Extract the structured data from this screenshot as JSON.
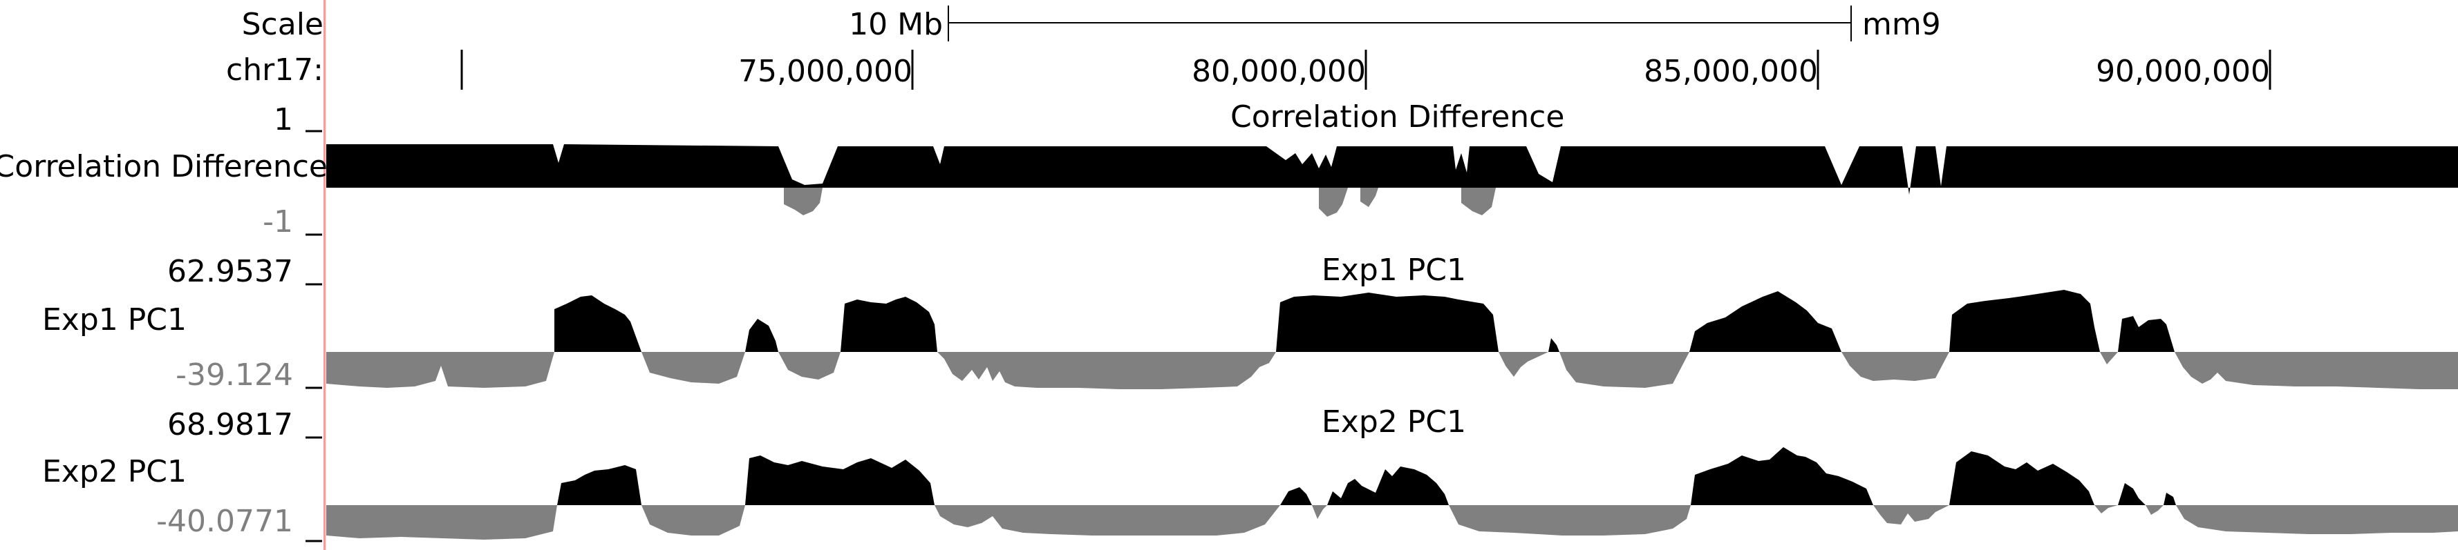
{
  "browser": {
    "scale_label": "Scale",
    "scale_bar_label": "10 Mb",
    "assembly": "mm9",
    "chrom_label": "chr17:",
    "positions": [
      "75,000,000",
      "80,000,000",
      "85,000,000",
      "90,000,000"
    ],
    "separator_color": "#ff9999"
  },
  "tracks": [
    {
      "name": "Correlation Difference",
      "title": "Correlation Difference",
      "max_label": "1",
      "min_label": "-1",
      "pos_color": "#000000",
      "neg_color": "#808080"
    },
    {
      "name": "Exp1 PC1",
      "title": "Exp1 PC1",
      "max_label": "62.9537",
      "min_label": "-39.124",
      "pos_color": "#000000",
      "neg_color": "#808080"
    },
    {
      "name": "Exp2 PC1",
      "title": "Exp2 PC1",
      "max_label": "68.9817",
      "min_label": "-40.0771",
      "pos_color": "#000000",
      "neg_color": "#808080"
    }
  ]
}
